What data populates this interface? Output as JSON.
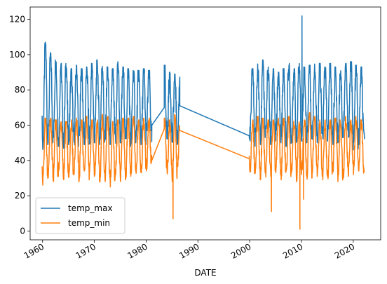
{
  "chart_data": {
    "type": "line",
    "title": "",
    "xlabel": "DATE",
    "ylabel": "",
    "xlim": [
      1957.6,
      2025.3
    ],
    "ylim": [
      -5,
      127
    ],
    "grid": false,
    "legend": {
      "placement": "bottom-left",
      "entries": [
        "temp_max",
        "temp_min"
      ]
    },
    "x_ticks": [
      1960,
      1970,
      1980,
      1990,
      2000,
      2010,
      2020
    ],
    "x_tick_labels": [
      "1960",
      "1970",
      "1980",
      "1990",
      "2000",
      "2010",
      "2020"
    ],
    "y_ticks": [
      0,
      20,
      40,
      60,
      80,
      100,
      120
    ],
    "y_tick_labels": [
      "0",
      "20",
      "40",
      "60",
      "80",
      "100",
      "120"
    ],
    "segments": [
      {
        "start": 1959.9,
        "end": 1981.1
      },
      {
        "start": 1983.5,
        "end": 1986.5
      },
      {
        "start": 1999.9,
        "end": 2022.2
      }
    ],
    "series": [
      {
        "name": "temp_max",
        "color": "#1f77b4",
        "seasonal_peak_values": [
          82,
          107,
          101,
          97,
          95,
          95,
          92,
          94,
          92,
          93,
          95,
          97,
          95,
          93,
          92,
          96,
          93,
          92,
          91,
          91,
          92,
          91,
          93,
          94,
          90,
          89,
          89,
          91,
          92,
          95,
          97,
          93,
          92,
          90,
          92,
          95,
          92,
          95,
          93,
          94,
          95,
          95,
          93,
          95,
          93,
          92,
          95,
          96,
          94,
          93,
          93,
          93
        ],
        "seasonal_trough_values": [
          55,
          48,
          51,
          52,
          50,
          49,
          51,
          50,
          52,
          51,
          50,
          52,
          51,
          49,
          51,
          50,
          52,
          51,
          50,
          52,
          51,
          55,
          52,
          54,
          53,
          52,
          51,
          52,
          53,
          50,
          51,
          52,
          51,
          53,
          52,
          50,
          52,
          51,
          53,
          52,
          54,
          52,
          52,
          53,
          51,
          52,
          55
        ],
        "connectors": [
          {
            "x": [
              1981.1,
              1983.5
            ],
            "y": [
              60,
              70
            ]
          },
          {
            "x": [
              1986.5,
              1999.9
            ],
            "y": [
              71,
              54
            ]
          }
        ],
        "spikes": [
          {
            "x": 2010.1,
            "y": 122
          }
        ]
      },
      {
        "name": "temp_min",
        "color": "#ff7f0e",
        "seasonal_peak_values": [
          62,
          64,
          64,
          63,
          62,
          62,
          63,
          64,
          63,
          65,
          63,
          63,
          66,
          65,
          62,
          63,
          64,
          64,
          65,
          63,
          64,
          64,
          63,
          64,
          63,
          66,
          62,
          62,
          63,
          65,
          64,
          63,
          63,
          64,
          64,
          65,
          63,
          62,
          63,
          67,
          65,
          63,
          63,
          63,
          64,
          63,
          65,
          63,
          65,
          63,
          63
        ],
        "seasonal_trough_values": [
          29,
          28,
          32,
          30,
          33,
          31,
          29,
          34,
          30,
          32,
          31,
          33,
          29,
          30,
          26,
          32,
          30,
          31,
          33,
          32,
          35,
          36,
          39,
          34,
          33,
          30,
          35,
          34,
          33,
          34,
          31,
          32,
          33,
          34,
          31,
          32,
          35,
          30,
          34,
          31,
          32,
          33,
          31,
          30,
          35,
          30,
          32,
          33,
          34,
          36,
          32
        ],
        "connectors": [
          {
            "x": [
              1981.1,
              1983.5
            ],
            "y": [
              40,
              58
            ]
          },
          {
            "x": [
              1986.5,
              1999.9
            ],
            "y": [
              57,
              41
            ]
          }
        ],
        "spikes": [
          {
            "x": 1985.2,
            "y": 7
          },
          {
            "x": 2004.2,
            "y": 11
          },
          {
            "x": 2009.7,
            "y": 1
          },
          {
            "x": 2010.4,
            "y": 18
          }
        ]
      }
    ]
  }
}
